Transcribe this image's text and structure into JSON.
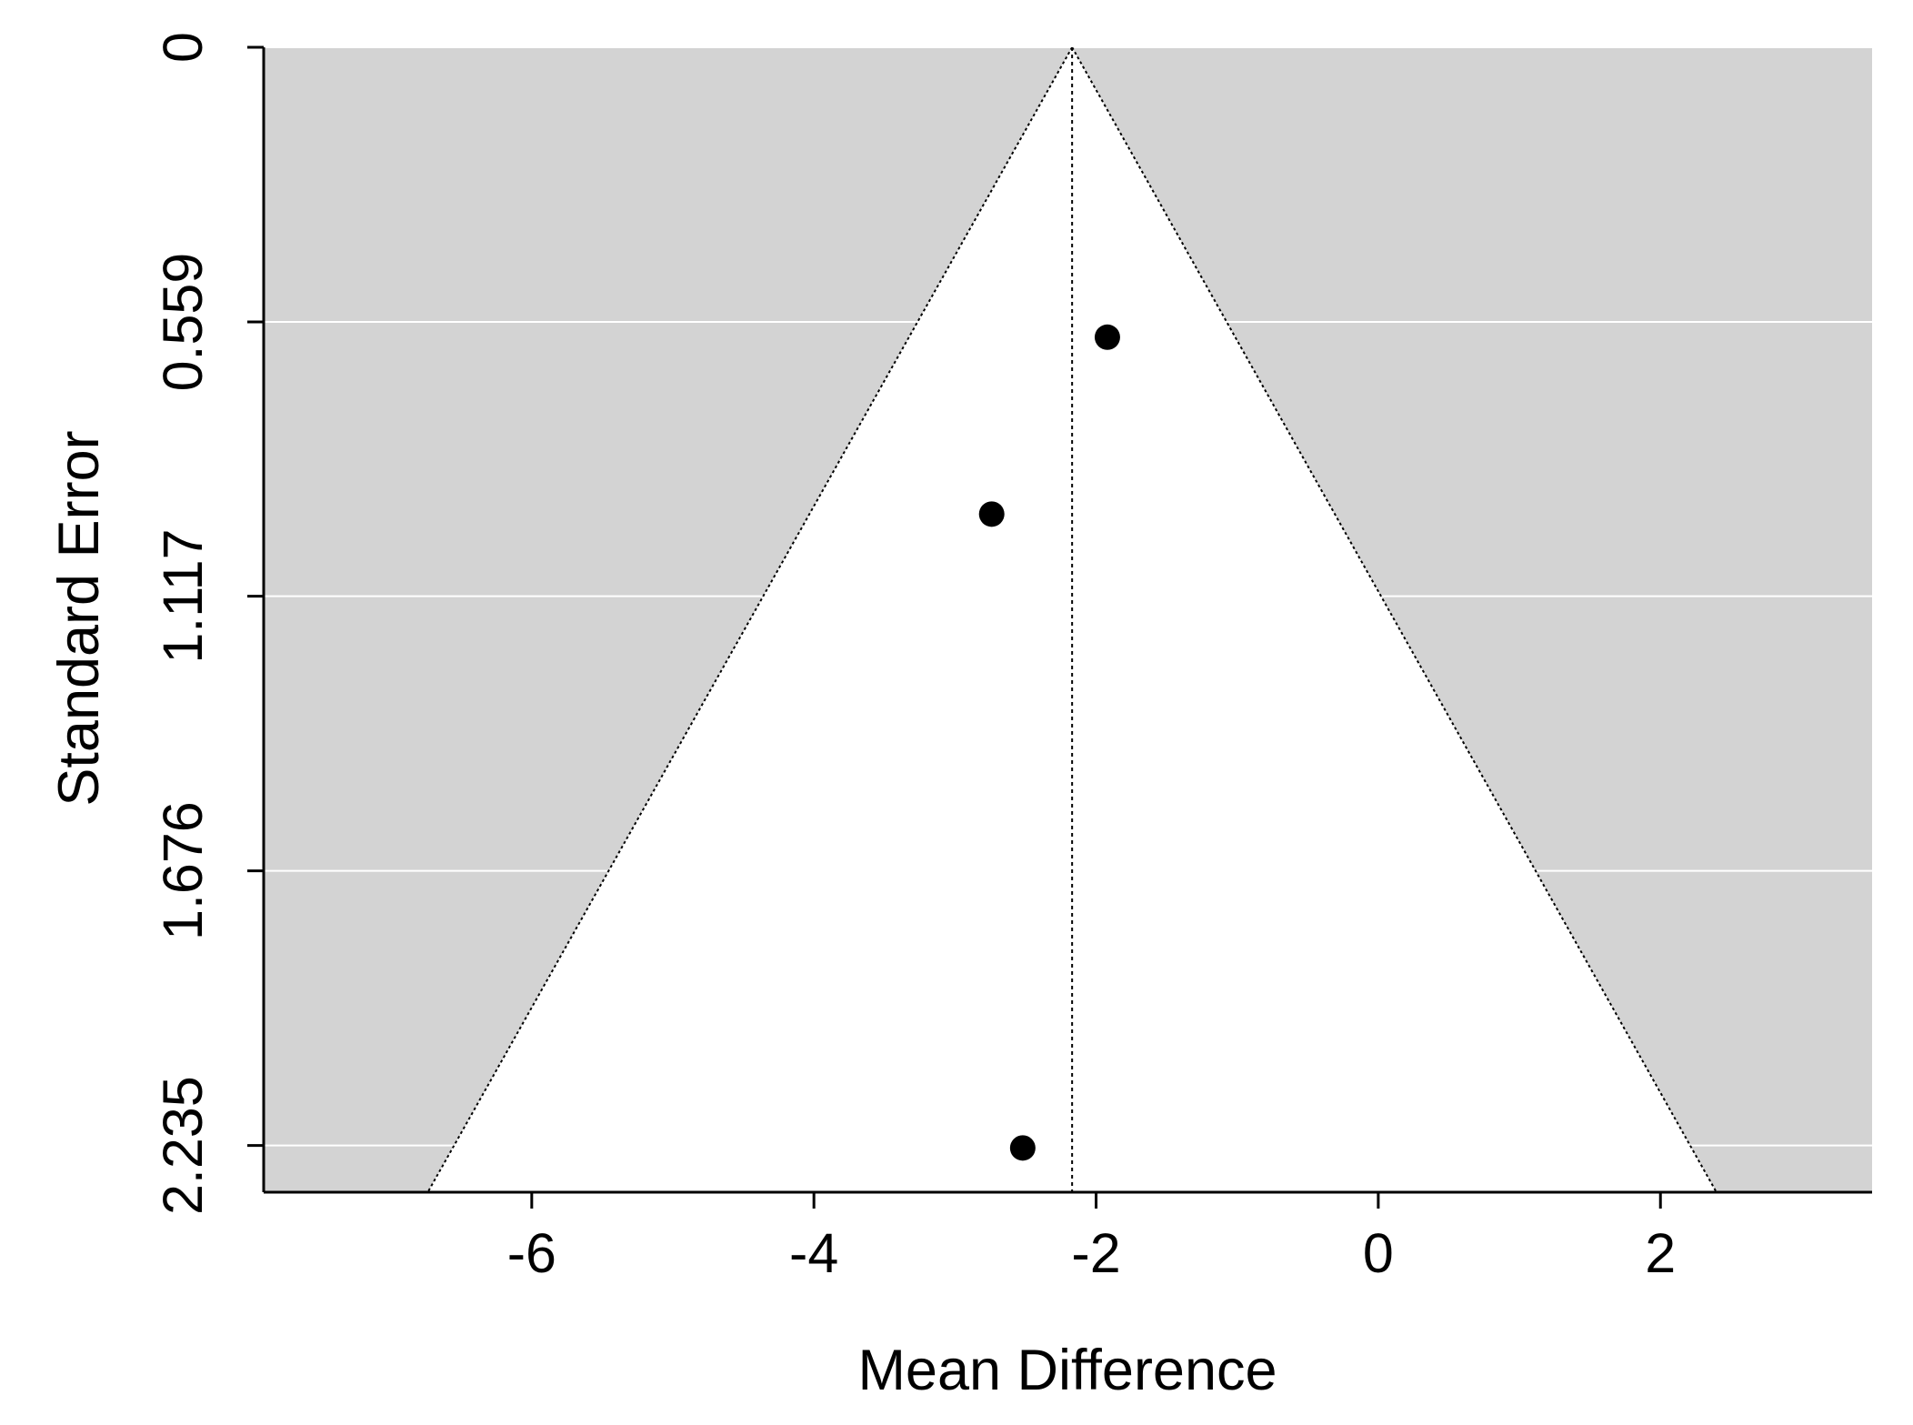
{
  "chart_data": {
    "type": "scatter",
    "subtype": "funnel-plot",
    "title": "",
    "xlabel": "Mean Difference",
    "ylabel": "Standard Error",
    "xlim": [
      -7.9,
      3.5
    ],
    "ylim": [
      0,
      2.33
    ],
    "y_reversed": true,
    "x_ticks": [
      -6,
      -4,
      -2,
      0,
      2
    ],
    "x_tick_labels": [
      "-6",
      "-4",
      "-2",
      "0",
      "2"
    ],
    "y_ticks": [
      0,
      0.559,
      1.117,
      1.676,
      2.235
    ],
    "y_tick_labels": [
      "0",
      "0.559",
      "1.117",
      "1.676",
      "2.235"
    ],
    "pooled_estimate": -2.17,
    "funnel_z": 1.96,
    "grid": true,
    "colors": {
      "background": "#d3d3d3",
      "funnel_fill": "#ffffff",
      "gridline": "#ffffff",
      "point": "#000000",
      "line": "#000000"
    },
    "series": [
      {
        "x": [
          -1.92,
          -2.74,
          -2.52
        ],
        "y": [
          0.59,
          0.95,
          2.24
        ]
      }
    ]
  }
}
